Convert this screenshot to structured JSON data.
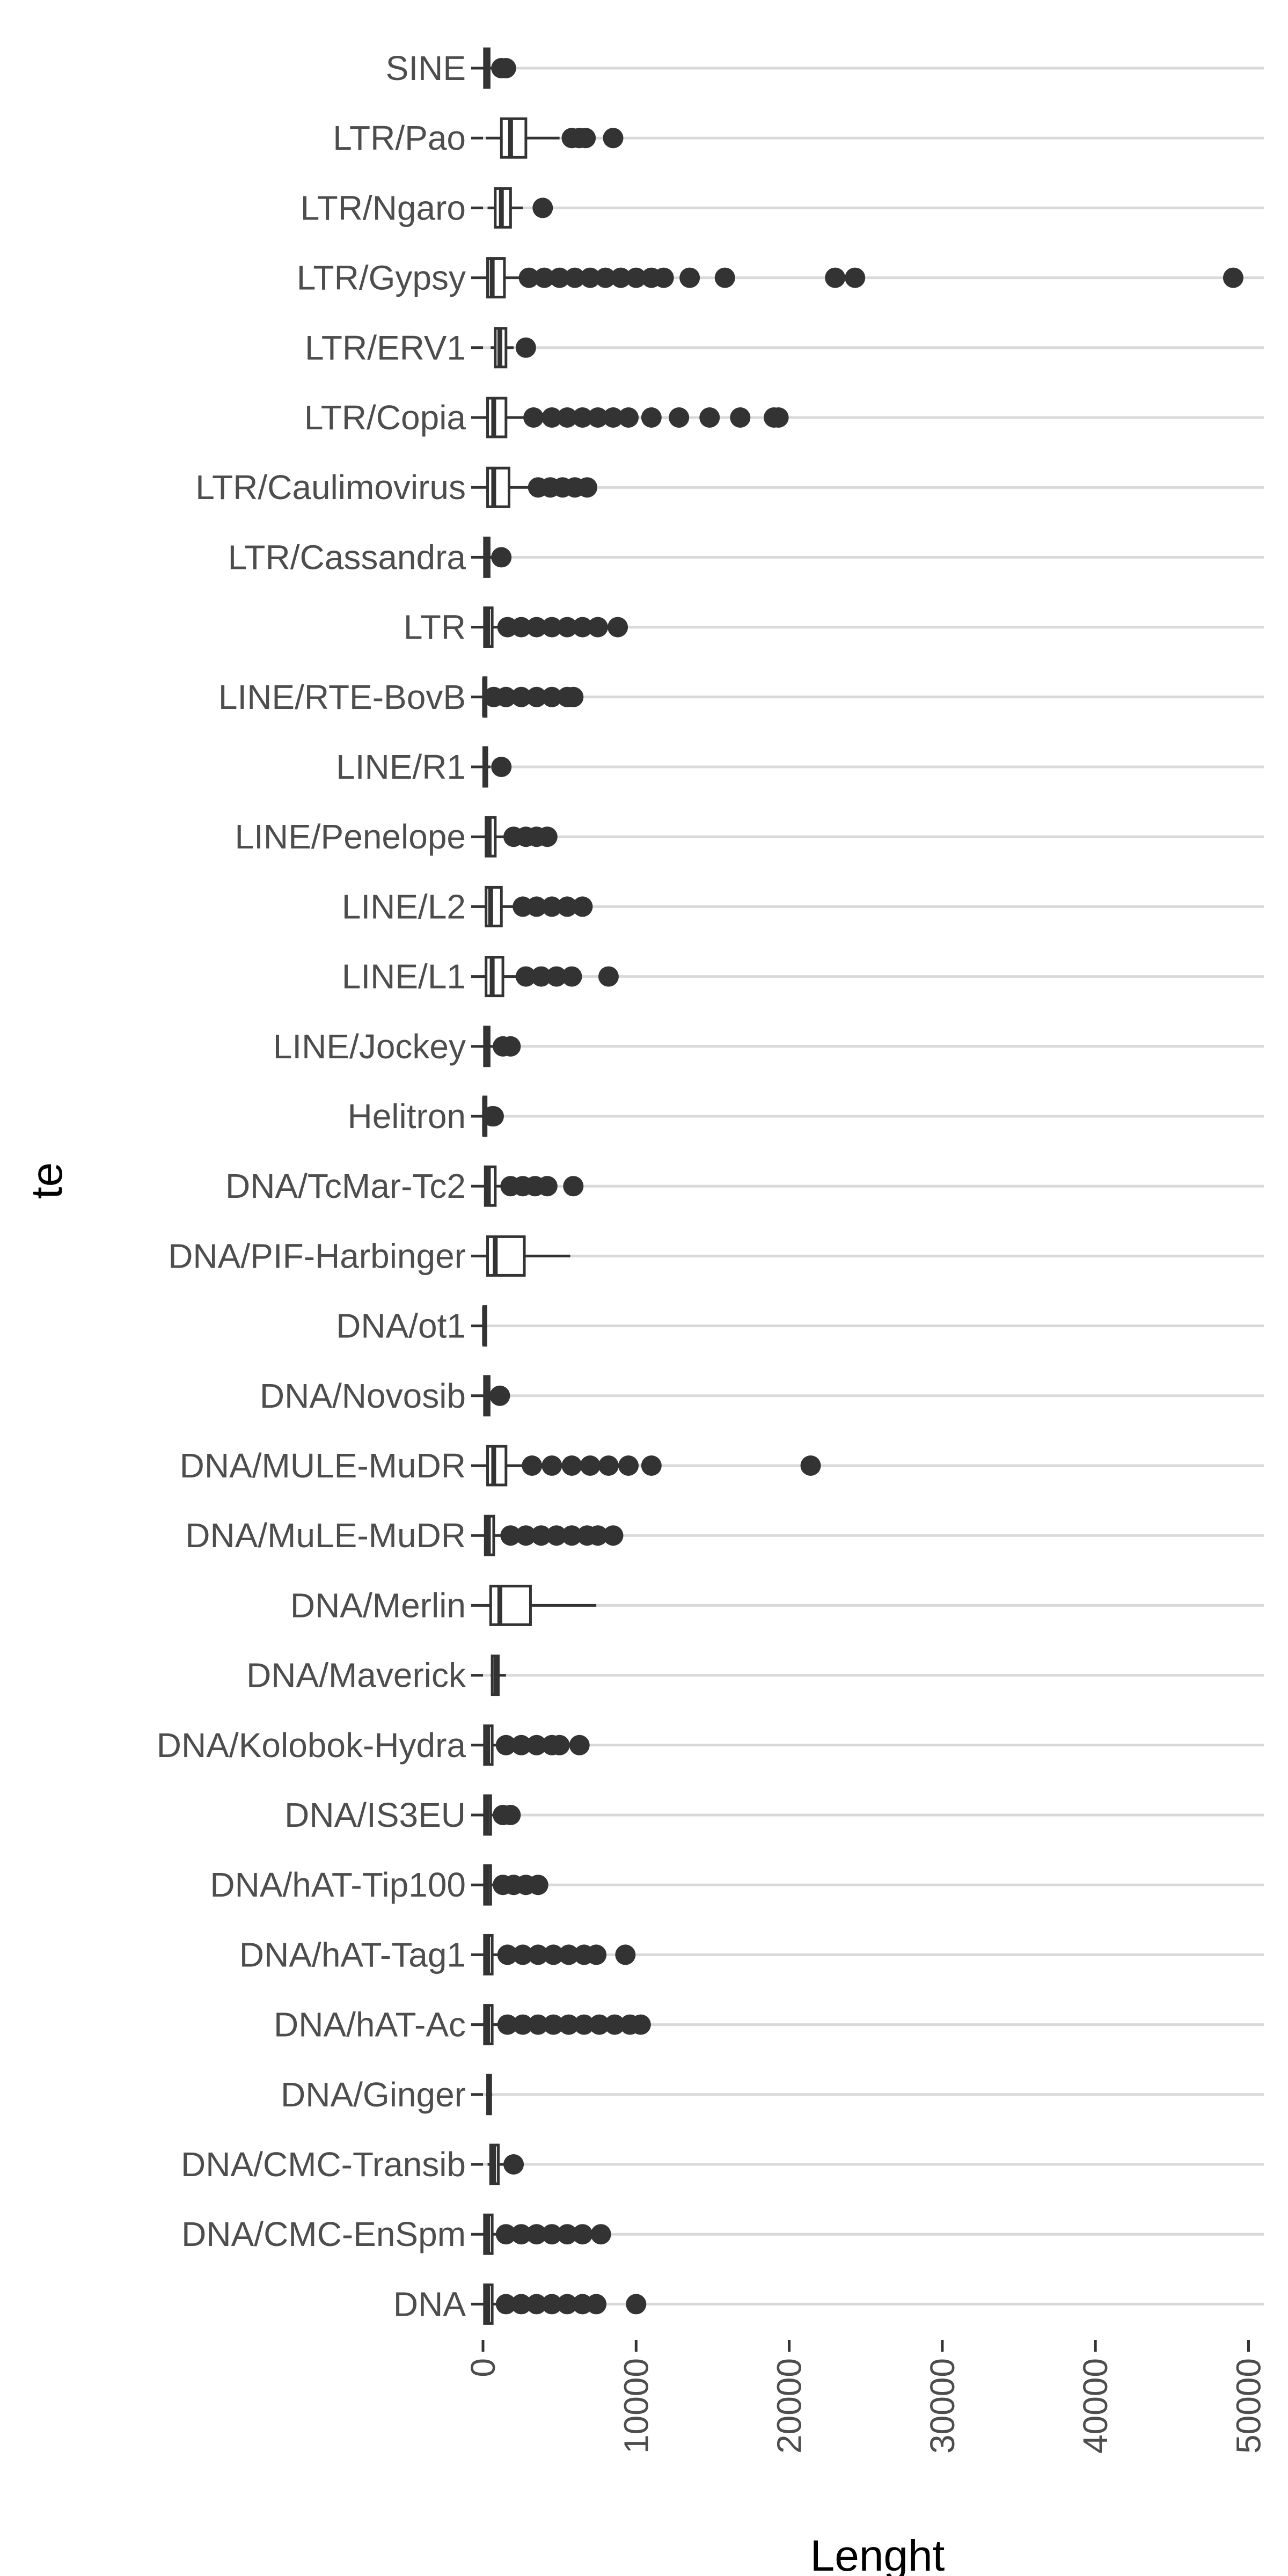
{
  "chart_data": {
    "type": "boxplot",
    "orientation": "horizontal",
    "xlabel": "Lenght",
    "ylabel": "te",
    "xlim": [
      0,
      51000
    ],
    "x_ticks": [
      0,
      10000,
      20000,
      30000,
      40000,
      50000
    ],
    "x_tick_labels": [
      "0",
      "10000",
      "20000",
      "30000",
      "40000",
      "50000"
    ],
    "grid": "horizontal major lines",
    "colors": {
      "box_stroke": "#333333",
      "outlier": "#333333",
      "grid": "#d9d9d9",
      "tick_label": "#4d4d4d",
      "axis_title": "#000000",
      "background": "#ffffff"
    },
    "categories": [
      "SINE",
      "LTR/Pao",
      "LTR/Ngaro",
      "LTR/Gypsy",
      "LTR/ERV1",
      "LTR/Copia",
      "LTR/Caulimovirus",
      "LTR/Cassandra",
      "LTR",
      "LINE/RTE-BovB",
      "LINE/R1",
      "LINE/Penelope",
      "LINE/L2",
      "LINE/L1",
      "LINE/Jockey",
      "Helitron",
      "DNA/TcMar-Tc2",
      "DNA/PIF-Harbinger",
      "DNA/ot1",
      "DNA/Novosib",
      "DNA/MULE-MuDR",
      "DNA/MuLE-MuDR",
      "DNA/Merlin",
      "DNA/Maverick",
      "DNA/Kolobok-Hydra",
      "DNA/IS3EU",
      "DNA/hAT-Tip100",
      "DNA/hAT-Tag1",
      "DNA/hAT-Ac",
      "DNA/Ginger",
      "DNA/CMC-Transib",
      "DNA/CMC-EnSpm",
      "DNA"
    ],
    "boxes": [
      {
        "min": 0,
        "q1": 100,
        "median": 250,
        "q3": 400,
        "max": 700,
        "outliers": [
          1200,
          1500
        ]
      },
      {
        "min": 200,
        "q1": 1200,
        "median": 1800,
        "q3": 2800,
        "max": 5000,
        "outliers": [
          5800,
          6300,
          6700,
          8500
        ]
      },
      {
        "min": 300,
        "q1": 800,
        "median": 1200,
        "q3": 1800,
        "max": 2600,
        "outliers": [
          3900
        ]
      },
      {
        "min": 0,
        "q1": 300,
        "median": 600,
        "q3": 1400,
        "max": 2800,
        "outliers": [
          3000,
          4000,
          5000,
          6000,
          7000,
          8000,
          9000,
          10000,
          11000,
          11800,
          13500,
          15800,
          23000,
          24300,
          49000
        ]
      },
      {
        "min": 500,
        "q1": 800,
        "median": 1100,
        "q3": 1500,
        "max": 2000,
        "outliers": [
          2800
        ]
      },
      {
        "min": 0,
        "q1": 300,
        "median": 700,
        "q3": 1500,
        "max": 3000,
        "outliers": [
          3300,
          4500,
          5500,
          6500,
          7500,
          8500,
          9500,
          11000,
          12800,
          14800,
          16800,
          19000,
          19300
        ]
      },
      {
        "min": 0,
        "q1": 300,
        "median": 700,
        "q3": 1700,
        "max": 3200,
        "outliers": [
          3600,
          4400,
          5200,
          6000,
          6800
        ]
      },
      {
        "min": 0,
        "q1": 100,
        "median": 250,
        "q3": 400,
        "max": 700,
        "outliers": [
          1200
        ]
      },
      {
        "min": 0,
        "q1": 100,
        "median": 300,
        "q3": 600,
        "max": 1200,
        "outliers": [
          1600,
          2500,
          3500,
          4500,
          5500,
          6500,
          7500,
          8800
        ]
      },
      {
        "min": 0,
        "q1": 50,
        "median": 100,
        "q3": 200,
        "max": 400,
        "outliers": [
          700,
          1500,
          2500,
          3500,
          4500,
          5500,
          5900
        ]
      },
      {
        "min": 0,
        "q1": 50,
        "median": 150,
        "q3": 250,
        "max": 500,
        "outliers": [
          1200
        ]
      },
      {
        "min": 0,
        "q1": 200,
        "median": 400,
        "q3": 800,
        "max": 1500,
        "outliers": [
          2000,
          2800,
          3500,
          4200
        ]
      },
      {
        "min": 0,
        "q1": 200,
        "median": 500,
        "q3": 1200,
        "max": 2200,
        "outliers": [
          2600,
          3500,
          4500,
          5500,
          6500
        ]
      },
      {
        "min": 0,
        "q1": 200,
        "median": 600,
        "q3": 1300,
        "max": 2400,
        "outliers": [
          2800,
          3800,
          4800,
          5800,
          8200
        ]
      },
      {
        "min": 0,
        "q1": 100,
        "median": 250,
        "q3": 400,
        "max": 800,
        "outliers": [
          1300,
          1800
        ]
      },
      {
        "min": 0,
        "q1": 50,
        "median": 100,
        "q3": 200,
        "max": 350,
        "outliers": [
          600,
          700
        ]
      },
      {
        "min": 0,
        "q1": 150,
        "median": 350,
        "q3": 800,
        "max": 1500,
        "outliers": [
          1800,
          2600,
          3400,
          4200,
          5900
        ]
      },
      {
        "min": 0,
        "q1": 300,
        "median": 800,
        "q3": 2700,
        "max": 5700,
        "outliers": []
      },
      {
        "min": 0,
        "q1": 50,
        "median": 100,
        "q3": 150,
        "max": 250,
        "outliers": []
      },
      {
        "min": 0,
        "q1": 100,
        "median": 200,
        "q3": 400,
        "max": 700,
        "outliers": [
          1100
        ]
      },
      {
        "min": 0,
        "q1": 300,
        "median": 700,
        "q3": 1500,
        "max": 2800,
        "outliers": [
          3200,
          4500,
          5800,
          7000,
          8200,
          9500,
          11000,
          21400
        ]
      },
      {
        "min": 0,
        "q1": 150,
        "median": 350,
        "q3": 700,
        "max": 1400,
        "outliers": [
          1800,
          2800,
          3800,
          4800,
          5800,
          6800,
          7500,
          8500
        ]
      },
      {
        "min": 0,
        "q1": 500,
        "median": 1100,
        "q3": 3100,
        "max": 7400,
        "outliers": []
      },
      {
        "min": 500,
        "q1": 600,
        "median": 850,
        "q3": 1000,
        "max": 1500,
        "outliers": []
      },
      {
        "min": 0,
        "q1": 100,
        "median": 300,
        "q3": 600,
        "max": 1100,
        "outliers": [
          1500,
          2500,
          3500,
          4500,
          5000,
          6300
        ]
      },
      {
        "min": 0,
        "q1": 100,
        "median": 250,
        "q3": 500,
        "max": 900,
        "outliers": [
          1300,
          1800
        ]
      },
      {
        "min": 0,
        "q1": 100,
        "median": 250,
        "q3": 500,
        "max": 900,
        "outliers": [
          1300,
          2000,
          2800,
          3600
        ]
      },
      {
        "min": 0,
        "q1": 100,
        "median": 300,
        "q3": 600,
        "max": 1100,
        "outliers": [
          1600,
          2600,
          3600,
          4600,
          5600,
          6600,
          7400,
          9300
        ]
      },
      {
        "min": 0,
        "q1": 100,
        "median": 300,
        "q3": 600,
        "max": 1100,
        "outliers": [
          1600,
          2600,
          3600,
          4600,
          5600,
          6600,
          7600,
          8600,
          9600,
          10300
        ]
      },
      {
        "min": 200,
        "q1": 300,
        "median": 400,
        "q3": 500,
        "max": 600,
        "outliers": []
      },
      {
        "min": 300,
        "q1": 500,
        "median": 700,
        "q3": 1000,
        "max": 1400,
        "outliers": [
          2000
        ]
      },
      {
        "min": 0,
        "q1": 100,
        "median": 300,
        "q3": 600,
        "max": 1100,
        "outliers": [
          1500,
          2500,
          3500,
          4500,
          5500,
          6500,
          7700
        ]
      },
      {
        "min": 0,
        "q1": 100,
        "median": 300,
        "q3": 600,
        "max": 1100,
        "outliers": [
          1500,
          2500,
          3500,
          4500,
          5500,
          6500,
          7400,
          10000
        ]
      }
    ]
  }
}
